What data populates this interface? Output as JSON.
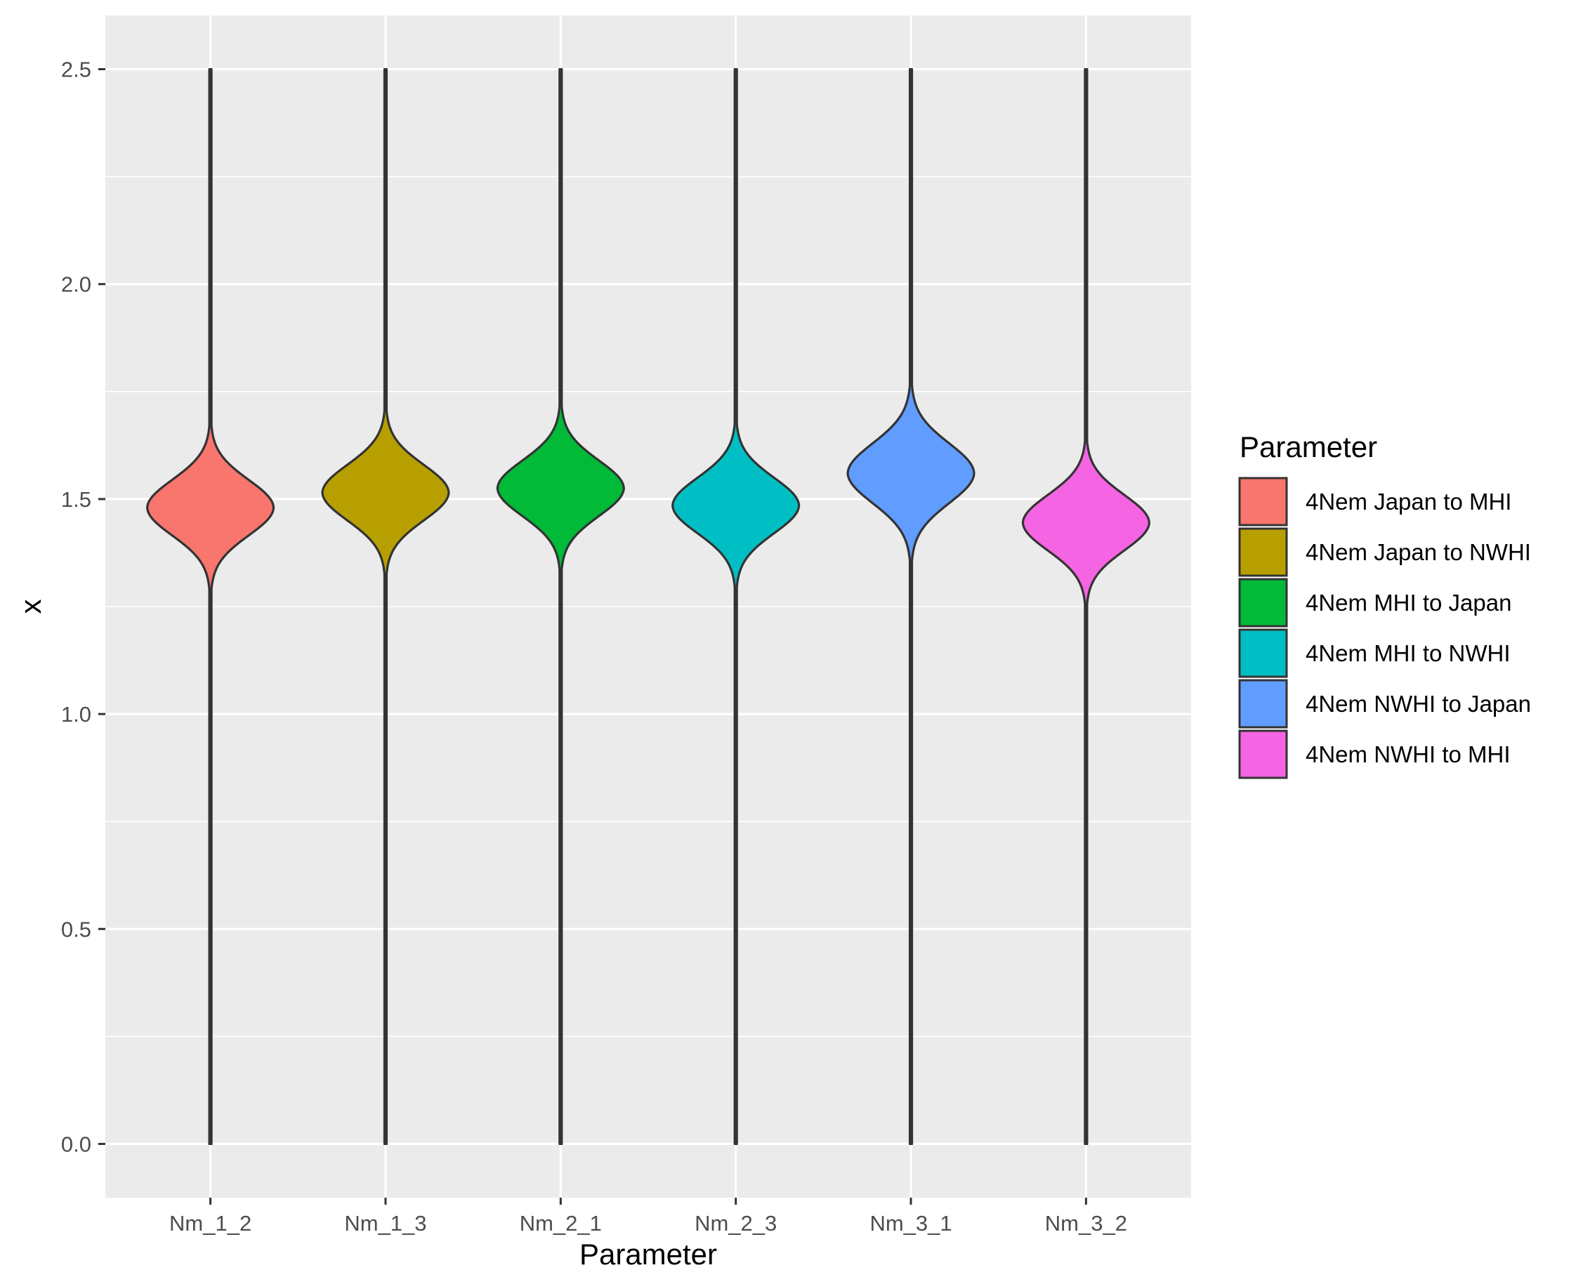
{
  "chart_data": {
    "type": "violin",
    "xlabel": "Parameter",
    "ylabel": "x",
    "ylim": [
      -0.125,
      2.625
    ],
    "yticks": [
      0.0,
      0.5,
      1.0,
      1.5,
      2.0,
      2.5
    ],
    "ytick_labels": [
      "0.0",
      "0.5",
      "1.0",
      "1.5",
      "2.0",
      "2.5"
    ],
    "grid": true,
    "panel_background": "#ebebeb",
    "categories": [
      "Nm_1_2",
      "Nm_1_3",
      "Nm_2_1",
      "Nm_2_3",
      "Nm_3_1",
      "Nm_3_2"
    ],
    "series": [
      {
        "name": "4Nem Japan to MHI",
        "color": "#F8766D",
        "min": 0.0,
        "max": 2.5,
        "center": 1.48,
        "spread": 0.065,
        "tail_low": 1.3,
        "tail_high": 1.68
      },
      {
        "name": "4Nem Japan to NWHI",
        "color": "#B79F00",
        "min": 0.0,
        "max": 2.5,
        "center": 1.515,
        "spread": 0.065,
        "tail_low": 1.34,
        "tail_high": 1.71
      },
      {
        "name": "4Nem MHI to Japan",
        "color": "#00BA38",
        "min": 0.0,
        "max": 2.5,
        "center": 1.525,
        "spread": 0.065,
        "tail_low": 1.36,
        "tail_high": 1.73
      },
      {
        "name": "4Nem MHI to NWHI",
        "color": "#00BFC4",
        "min": 0.0,
        "max": 2.5,
        "center": 1.485,
        "spread": 0.065,
        "tail_low": 1.31,
        "tail_high": 1.68
      },
      {
        "name": "4Nem NWHI to Japan",
        "color": "#619CFF",
        "min": 0.0,
        "max": 2.5,
        "center": 1.56,
        "spread": 0.07,
        "tail_low": 1.38,
        "tail_high": 1.77
      },
      {
        "name": "4Nem NWHI to MHI",
        "color": "#F564E3",
        "min": 0.0,
        "max": 2.5,
        "center": 1.445,
        "spread": 0.065,
        "tail_low": 1.28,
        "tail_high": 1.63
      }
    ],
    "legend": {
      "title": "Parameter",
      "placement": "right",
      "entries": [
        "4Nem Japan to MHI",
        "4Nem Japan to NWHI",
        "4Nem MHI to Japan",
        "4Nem MHI to NWHI",
        "4Nem NWHI to Japan",
        "4Nem NWHI to MHI"
      ]
    }
  }
}
